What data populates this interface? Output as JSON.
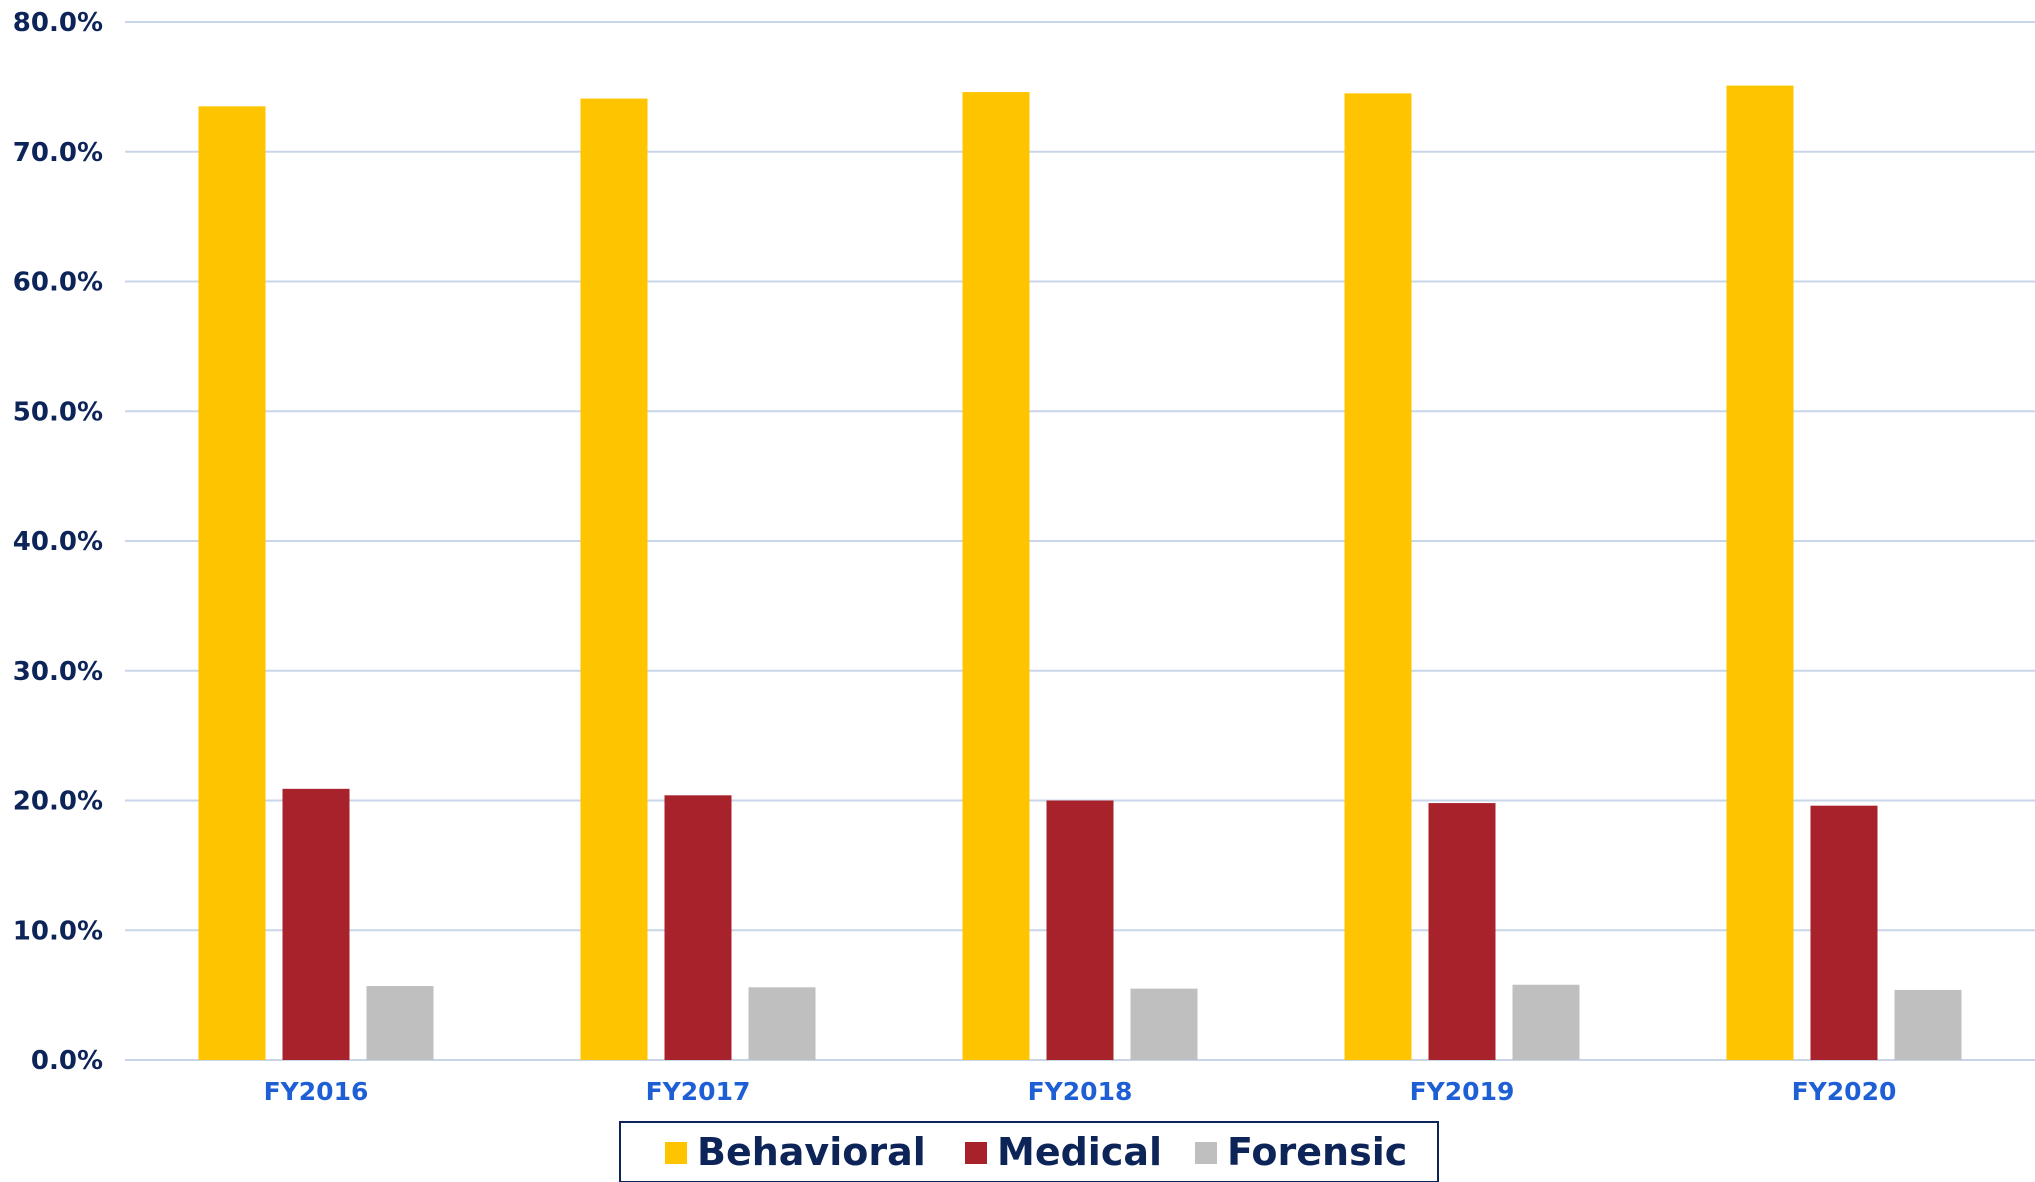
{
  "chart_data": {
    "type": "bar",
    "categories": [
      "FY2016",
      "FY2017",
      "FY2018",
      "FY2019",
      "FY2020"
    ],
    "series": [
      {
        "name": "Behavioral",
        "values": [
          73.5,
          74.1,
          74.6,
          74.5,
          75.1
        ],
        "color": "#FFC400"
      },
      {
        "name": "Medical",
        "values": [
          20.9,
          20.4,
          20.0,
          19.8,
          19.6
        ],
        "color": "#A8222B"
      },
      {
        "name": "Forensic",
        "values": [
          5.7,
          5.6,
          5.5,
          5.8,
          5.4
        ],
        "color": "#BFBFBF"
      }
    ],
    "yticks": [
      "0.0%",
      "10.0%",
      "20.0%",
      "30.0%",
      "40.0%",
      "50.0%",
      "60.0%",
      "70.0%",
      "80.0%"
    ],
    "ylim": [
      0,
      80
    ],
    "grid": true,
    "legend_position": "bottom",
    "title": "",
    "xlabel": "",
    "ylabel": ""
  },
  "colors": {
    "gridline": "#C9D6EA",
    "axis_text": "#0d2459",
    "category_text": "#1f5fd6",
    "legend_border": "#0d2459"
  }
}
